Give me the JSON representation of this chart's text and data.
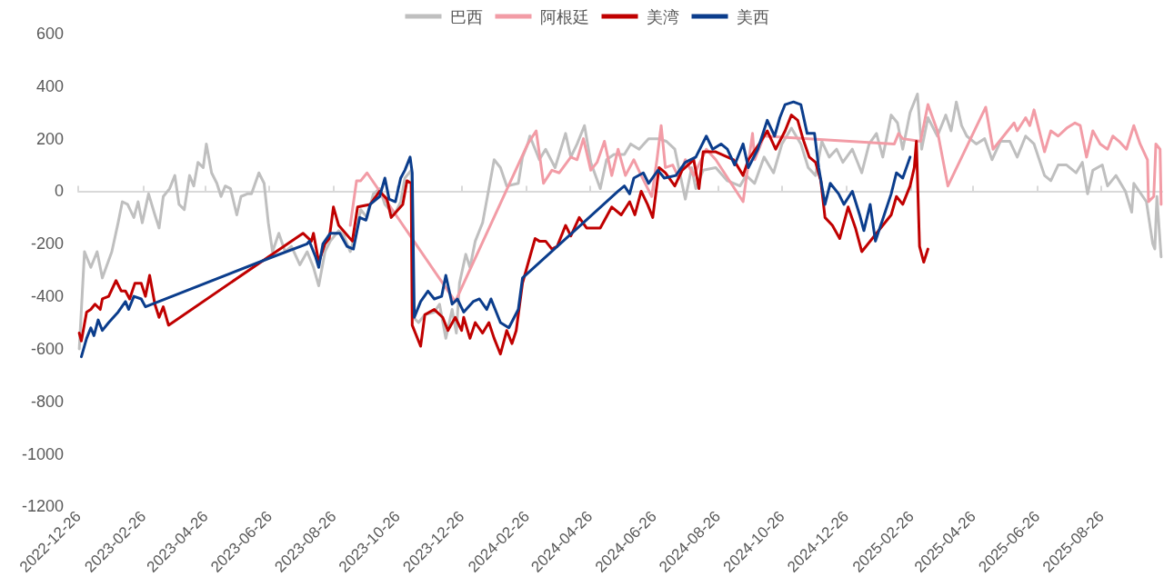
{
  "chart_data": {
    "type": "line",
    "xlim": [
      "2022-12-26",
      "2025-10-23"
    ],
    "xticks": [
      "2022-12-26",
      "2023-02-26",
      "2023-04-26",
      "2023-06-26",
      "2023-08-26",
      "2023-10-26",
      "2023-12-26",
      "2024-02-26",
      "2024-04-26",
      "2024-06-26",
      "2024-08-26",
      "2024-10-26",
      "2024-12-26",
      "2025-02-26",
      "2025-04-26",
      "2025-06-26",
      "2025-08-26"
    ],
    "ylim": [
      -1200,
      600
    ],
    "yticks": [
      -1200,
      -1000,
      -800,
      -600,
      -400,
      -200,
      0,
      200,
      400,
      600
    ],
    "legend": "top",
    "series": [
      {
        "name": "巴西",
        "color": "#bfbfbf",
        "x": [
          "2022-12-27",
          "2023-01-01",
          "2023-01-07",
          "2023-01-13",
          "2023-01-18",
          "2023-01-27",
          "2023-02-02",
          "2023-02-06",
          "2023-02-11",
          "2023-02-17",
          "2023-02-21",
          "2023-02-25",
          "2023-03-03",
          "2023-03-09",
          "2023-03-13",
          "2023-03-17",
          "2023-03-23",
          "2023-03-28",
          "2023-04-01",
          "2023-04-06",
          "2023-04-11",
          "2023-04-15",
          "2023-04-19",
          "2023-04-24",
          "2023-04-27",
          "2023-05-02",
          "2023-05-07",
          "2023-05-11",
          "2023-05-15",
          "2023-05-20",
          "2023-05-26",
          "2023-05-30",
          "2023-06-05",
          "2023-06-09",
          "2023-06-16",
          "2023-06-21",
          "2023-06-25",
          "2023-06-29",
          "2023-07-05",
          "2023-07-11",
          "2023-07-17",
          "2023-07-25",
          "2023-08-01",
          "2023-08-07",
          "2023-08-12",
          "2023-08-18",
          "2023-08-23",
          "2023-08-31",
          "2023-09-05",
          "2023-09-11",
          "2023-09-17",
          "2023-09-21",
          "2023-09-27",
          "2023-10-03",
          "2023-10-09",
          "2023-10-14",
          "2023-10-23",
          "2023-10-29",
          "2023-11-02",
          "2023-11-08",
          "2023-11-10",
          "2023-11-15",
          "2023-11-21",
          "2023-11-30",
          "2023-12-05",
          "2023-12-11",
          "2023-12-17",
          "2023-12-21",
          "2023-12-24",
          "2023-12-30",
          "2024-01-03",
          "2024-01-08",
          "2024-01-15",
          "2024-01-21",
          "2024-01-26",
          "2024-02-01",
          "2024-02-07",
          "2024-02-18",
          "2024-02-22",
          "2024-02-27",
          "2024-02-29",
          "2024-03-09",
          "2024-03-15",
          "2024-03-24",
          "2024-04-03",
          "2024-04-08",
          "2024-04-14",
          "2024-04-21",
          "2024-04-27",
          "2024-05-06",
          "2024-05-12",
          "2024-05-19",
          "2024-05-29",
          "2024-06-04",
          "2024-06-12",
          "2024-06-21",
          "2024-06-30",
          "2024-07-08",
          "2024-07-16",
          "2024-07-26",
          "2024-08-01",
          "2024-08-05",
          "2024-08-12",
          "2024-08-24",
          "2024-09-04",
          "2024-09-16",
          "2024-09-22",
          "2024-09-30",
          "2024-10-09",
          "2024-10-18",
          "2024-10-26",
          "2024-11-04",
          "2024-11-13",
          "2024-11-20",
          "2024-11-27",
          "2024-12-03",
          "2024-12-10",
          "2024-12-17",
          "2024-12-23",
          "2025-01-01",
          "2025-01-10",
          "2025-01-17",
          "2025-01-24",
          "2025-01-30",
          "2025-02-07",
          "2025-02-13",
          "2025-02-18",
          "2025-02-25",
          "2025-03-04",
          "2025-03-08",
          "2025-03-14",
          "2025-03-23",
          "2025-03-31",
          "2025-04-05",
          "2025-04-10",
          "2025-04-15",
          "2025-04-20",
          "2025-04-29",
          "2025-05-07",
          "2025-05-14",
          "2025-05-22",
          "2025-05-31",
          "2025-06-07",
          "2025-06-15",
          "2025-06-23",
          "2025-07-03",
          "2025-07-09",
          "2025-07-16",
          "2025-07-24",
          "2025-08-02",
          "2025-08-08",
          "2025-08-13",
          "2025-08-18",
          "2025-08-27",
          "2025-09-01",
          "2025-09-09",
          "2025-09-18",
          "2025-09-24",
          "2025-09-26",
          "2025-10-08",
          "2025-10-14",
          "2025-10-16",
          "2025-10-18",
          "2025-10-22"
        ],
        "values": [
          -600,
          -230,
          -290,
          -230,
          -330,
          -230,
          -120,
          -40,
          -50,
          -100,
          -40,
          -120,
          -10,
          -90,
          -140,
          -20,
          10,
          60,
          -50,
          -70,
          60,
          20,
          110,
          90,
          180,
          70,
          30,
          -20,
          20,
          10,
          -90,
          -20,
          -10,
          -10,
          70,
          30,
          -120,
          -230,
          -160,
          -230,
          -210,
          -280,
          -230,
          -290,
          -360,
          -230,
          -190,
          -150,
          -170,
          -230,
          -150,
          -70,
          -100,
          -10,
          10,
          -50,
          -90,
          -40,
          50,
          80,
          -480,
          -500,
          -470,
          -460,
          -430,
          -560,
          -450,
          -540,
          -350,
          -240,
          -290,
          -190,
          -120,
          10,
          120,
          90,
          20,
          30,
          130,
          180,
          210,
          120,
          160,
          90,
          220,
          130,
          180,
          250,
          110,
          10,
          120,
          140,
          140,
          180,
          160,
          200,
          200,
          190,
          160,
          -30,
          90,
          10,
          80,
          90,
          40,
          20,
          60,
          30,
          130,
          70,
          180,
          240,
          180,
          90,
          60,
          190,
          130,
          160,
          110,
          160,
          70,
          180,
          220,
          130,
          290,
          260,
          160,
          300,
          370,
          160,
          280,
          210,
          290,
          230,
          340,
          250,
          210,
          180,
          200,
          120,
          190,
          190,
          130,
          210,
          180,
          60,
          40,
          100,
          100,
          70,
          110,
          -10,
          80,
          100,
          20,
          60,
          0,
          -80,
          30,
          -40,
          -200,
          -220,
          -20,
          -250
        ]
      },
      {
        "name": "阿根廷",
        "color": "#f29ca6",
        "x": [
          "2023-09-11",
          "2023-09-17",
          "2023-09-21",
          "2023-09-27",
          "2023-12-20",
          "2024-02-27",
          "2024-03-06",
          "2024-03-13",
          "2024-03-21",
          "2024-03-28",
          "2024-04-08",
          "2024-04-14",
          "2024-04-20",
          "2024-04-27",
          "2024-05-03",
          "2024-05-10",
          "2024-05-17",
          "2024-05-23",
          "2024-05-30",
          "2024-06-07",
          "2024-06-14",
          "2024-06-24",
          "2024-06-29",
          "2024-07-03",
          "2024-07-07",
          "2024-07-14",
          "2024-07-20",
          "2024-07-26",
          "2024-08-03",
          "2024-08-15",
          "2024-08-24",
          "2024-09-19",
          "2024-09-28",
          "2024-09-30",
          "2024-10-09",
          "2025-02-10",
          "2025-02-14",
          "2025-02-18",
          "2025-03-07",
          "2025-03-14",
          "2025-03-23",
          "2025-04-02",
          "2025-05-08",
          "2025-05-15",
          "2025-06-04",
          "2025-06-07",
          "2025-06-15",
          "2025-06-19",
          "2025-06-23",
          "2025-07-03",
          "2025-07-09",
          "2025-07-16",
          "2025-07-24",
          "2025-08-01",
          "2025-08-06",
          "2025-08-12",
          "2025-08-18",
          "2025-08-25",
          "2025-09-01",
          "2025-09-06",
          "2025-09-12",
          "2025-09-19",
          "2025-09-26",
          "2025-10-02",
          "2025-10-09",
          "2025-10-10",
          "2025-10-15",
          "2025-10-17",
          "2025-10-21",
          "2025-10-22"
        ],
        "values": [
          -130,
          40,
          40,
          70,
          -420,
          180,
          230,
          30,
          80,
          70,
          130,
          120,
          200,
          80,
          110,
          190,
          60,
          160,
          60,
          120,
          60,
          -20,
          120,
          250,
          90,
          100,
          50,
          120,
          60,
          160,
          120,
          -40,
          220,
          120,
          210,
          180,
          220,
          200,
          190,
          330,
          230,
          20,
          320,
          160,
          260,
          230,
          280,
          250,
          310,
          150,
          230,
          210,
          240,
          260,
          250,
          130,
          230,
          180,
          160,
          210,
          190,
          160,
          250,
          180,
          120,
          -40,
          -20,
          180,
          160,
          -50
        ]
      },
      {
        "name": "美湾",
        "color": "#c00000",
        "x": [
          "2022-12-27",
          "2022-12-29",
          "2023-01-03",
          "2023-01-07",
          "2023-01-11",
          "2023-01-16",
          "2023-01-18",
          "2023-01-24",
          "2023-01-31",
          "2023-02-05",
          "2023-02-09",
          "2023-02-13",
          "2023-02-18",
          "2023-02-24",
          "2023-02-28",
          "2023-03-04",
          "2023-03-09",
          "2023-03-13",
          "2023-03-17",
          "2023-03-22",
          "2023-07-28",
          "2023-08-05",
          "2023-08-07",
          "2023-08-12",
          "2023-08-18",
          "2023-08-22",
          "2023-08-26",
          "2023-08-31",
          "2023-09-13",
          "2023-09-18",
          "2023-09-30",
          "2023-10-09",
          "2023-10-16",
          "2023-10-20",
          "2023-10-31",
          "2023-11-04",
          "2023-11-08",
          "2023-11-09",
          "2023-11-17",
          "2023-11-21",
          "2023-11-30",
          "2023-12-08",
          "2023-12-13",
          "2023-12-20",
          "2023-12-26",
          "2023-12-28",
          "2024-01-03",
          "2024-01-08",
          "2024-01-15",
          "2024-01-21",
          "2024-01-26",
          "2024-02-01",
          "2024-02-07",
          "2024-02-12",
          "2024-02-16",
          "2024-02-22",
          "2024-02-29",
          "2024-03-05",
          "2024-03-09",
          "2024-03-15",
          "2024-03-21",
          "2024-03-26",
          "2024-04-03",
          "2024-04-08",
          "2024-04-16",
          "2024-04-23",
          "2024-05-06",
          "2024-05-17",
          "2024-05-26",
          "2024-06-03",
          "2024-06-08",
          "2024-06-14",
          "2024-06-20",
          "2024-06-25",
          "2024-07-01",
          "2024-07-07",
          "2024-07-16",
          "2024-07-23",
          "2024-08-03",
          "2024-08-08",
          "2024-08-12",
          "2024-08-24",
          "2024-09-10",
          "2024-09-19",
          "2024-09-24",
          "2024-10-06",
          "2024-10-12",
          "2024-10-20",
          "2024-10-29",
          "2024-11-04",
          "2024-11-10",
          "2024-11-15",
          "2024-11-21",
          "2024-11-27",
          "2024-12-02",
          "2024-12-06",
          "2024-12-13",
          "2024-12-20",
          "2024-12-28",
          "2025-01-04",
          "2025-01-10",
          "2025-02-07",
          "2025-02-12",
          "2025-02-18",
          "2025-02-25",
          "2025-03-01",
          "2025-03-03",
          "2025-03-06",
          "2025-03-10",
          "2025-03-14"
        ],
        "values": [
          -540,
          -570,
          -460,
          -450,
          -430,
          -450,
          -410,
          -400,
          -340,
          -380,
          -380,
          -410,
          -350,
          -350,
          -400,
          -320,
          -430,
          -480,
          -440,
          -510,
          -160,
          -190,
          -160,
          -270,
          -200,
          -180,
          -60,
          -130,
          -190,
          -60,
          -50,
          0,
          -30,
          -100,
          -50,
          40,
          30,
          -510,
          -590,
          -470,
          -450,
          -480,
          -530,
          -480,
          -530,
          -480,
          -560,
          -500,
          -540,
          -500,
          -560,
          -620,
          -530,
          -580,
          -530,
          -350,
          -250,
          -180,
          -190,
          -190,
          -220,
          -210,
          -130,
          -170,
          -100,
          -140,
          -140,
          -60,
          -90,
          -40,
          -90,
          0,
          -50,
          -100,
          90,
          70,
          20,
          80,
          120,
          10,
          150,
          150,
          120,
          60,
          120,
          190,
          230,
          160,
          230,
          290,
          270,
          200,
          130,
          110,
          40,
          -100,
          -130,
          -180,
          -60,
          -140,
          -230,
          -90,
          -20,
          -50,
          20,
          90,
          190,
          -210,
          -270,
          -220
        ]
      },
      {
        "name": "美西",
        "color": "#0b3d8c",
        "x": [
          "2022-12-29",
          "2023-01-03",
          "2023-01-07",
          "2023-01-10",
          "2023-01-14",
          "2023-01-18",
          "2023-01-24",
          "2023-02-02",
          "2023-02-09",
          "2023-02-12",
          "2023-02-17",
          "2023-02-24",
          "2023-02-28",
          "2023-06-29",
          "2023-08-01",
          "2023-08-03",
          "2023-08-09",
          "2023-08-12",
          "2023-08-16",
          "2023-08-23",
          "2023-09-01",
          "2023-09-08",
          "2023-09-14",
          "2023-09-20",
          "2023-09-26",
          "2023-09-30",
          "2023-10-09",
          "2023-10-14",
          "2023-10-18",
          "2023-10-24",
          "2023-10-29",
          "2023-11-02",
          "2023-11-07",
          "2023-11-09",
          "2023-11-11",
          "2023-11-17",
          "2023-11-24",
          "2023-11-30",
          "2023-12-07",
          "2023-12-11",
          "2023-12-17",
          "2023-12-22",
          "2023-12-28",
          "2024-01-06",
          "2024-01-12",
          "2024-01-19",
          "2024-01-23",
          "2024-02-01",
          "2024-02-09",
          "2024-02-18",
          "2024-02-22",
          "2024-05-23",
          "2024-05-29",
          "2024-06-03",
          "2024-06-07",
          "2024-06-16",
          "2024-06-21",
          "2024-06-30",
          "2024-07-06",
          "2024-07-17",
          "2024-07-26",
          "2024-08-05",
          "2024-08-15",
          "2024-08-21",
          "2024-08-29",
          "2024-09-04",
          "2024-09-11",
          "2024-09-19",
          "2024-09-24",
          "2024-10-03",
          "2024-10-12",
          "2024-10-19",
          "2024-10-24",
          "2024-10-29",
          "2024-11-06",
          "2024-11-13",
          "2024-11-19",
          "2024-11-26",
          "2024-11-30",
          "2024-12-06",
          "2024-12-11",
          "2024-12-19",
          "2024-12-24",
          "2025-01-01",
          "2025-01-08",
          "2025-01-12",
          "2025-01-18",
          "2025-01-23",
          "2025-02-07",
          "2025-02-12",
          "2025-02-18",
          "2025-02-25"
        ],
        "values": [
          -630,
          -560,
          -520,
          -550,
          -490,
          -530,
          -500,
          -460,
          -420,
          -450,
          -400,
          -410,
          -440,
          -250,
          -200,
          -190,
          -250,
          -290,
          -200,
          -160,
          -160,
          -210,
          -220,
          -100,
          -110,
          -50,
          -20,
          50,
          -30,
          -40,
          50,
          80,
          130,
          70,
          -480,
          -420,
          -380,
          -410,
          -400,
          -320,
          -430,
          -410,
          -460,
          -420,
          -410,
          -450,
          -410,
          -500,
          -520,
          -450,
          -330,
          0,
          20,
          -10,
          50,
          70,
          30,
          80,
          50,
          60,
          110,
          130,
          210,
          160,
          180,
          160,
          100,
          180,
          90,
          160,
          270,
          210,
          280,
          330,
          340,
          330,
          220,
          220,
          90,
          -50,
          30,
          -10,
          -50,
          0,
          -90,
          -150,
          -50,
          -190,
          -10,
          70,
          50,
          130
        ]
      }
    ]
  }
}
